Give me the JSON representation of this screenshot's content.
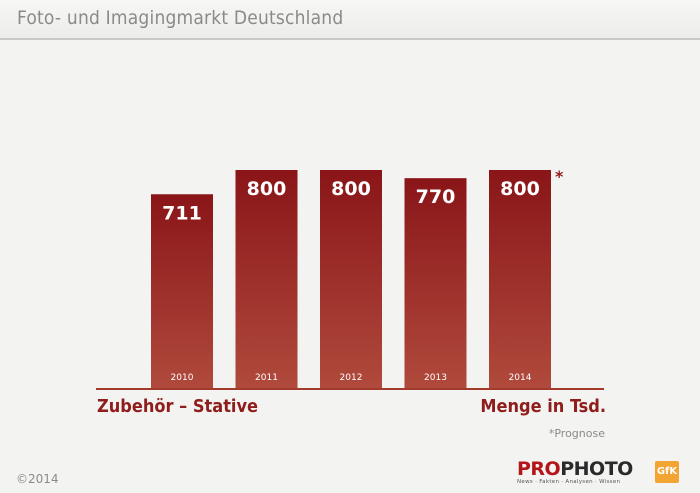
{
  "header": {
    "title": "Foto- und Imagingmarkt Deutschland"
  },
  "chart_data": {
    "type": "bar",
    "categories": [
      "2010",
      "2011",
      "2012",
      "2013",
      "2014"
    ],
    "values": [
      711,
      800,
      800,
      770,
      800
    ],
    "data_labels": [
      "711",
      "800",
      "800",
      "770",
      "800"
    ],
    "forecast_marker": "*",
    "forecast_category": "2014",
    "xlabel": "Zubehör – Stative",
    "ylabel": "Menge in Tsd.",
    "ylim": [
      0,
      800
    ],
    "grid": false,
    "bar_color_top": "#8a1518",
    "bar_color_bottom": "#b04a3c",
    "label_color": "#8f1d1c"
  },
  "footer": {
    "note": "*Prognose",
    "copyright": "©2014",
    "logo_pro": "PRO",
    "logo_photo": "PHOTO",
    "logo_tagline": "News · Fakten · Analysen · Wissen",
    "gfk_logo": "GfK"
  }
}
